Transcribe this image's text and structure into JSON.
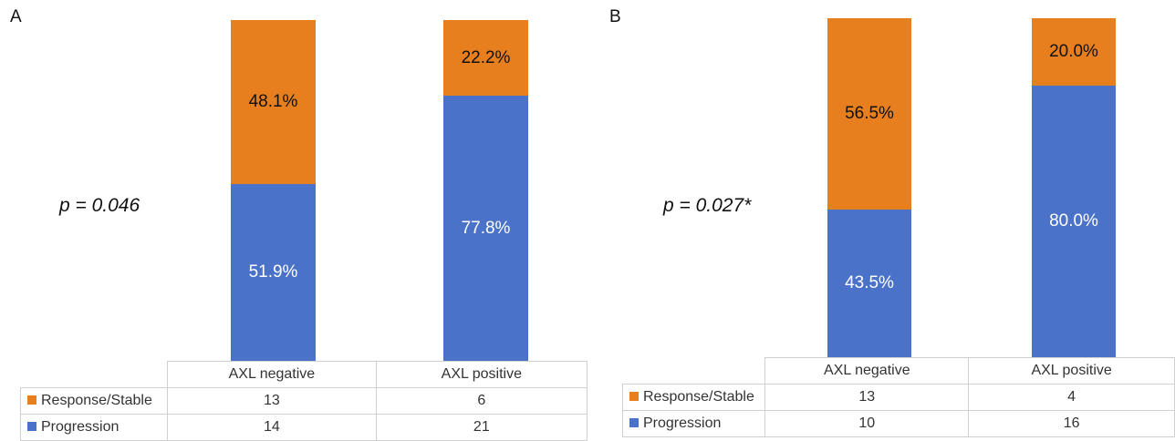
{
  "colors": {
    "response": "#E87F1F",
    "progression": "#4A72C9",
    "orange_label": "#111111",
    "blue_label": "#ffffff"
  },
  "legend": {
    "response": "Response/Stable",
    "progression": "Progression"
  },
  "chart_data": [
    {
      "type": "bar",
      "stacked": "percent",
      "panel": "A",
      "annotation": "p = 0.046",
      "categories": [
        "AXL negative",
        "AXL positive"
      ],
      "series": [
        {
          "name": "Progression",
          "values": [
            51.9,
            77.8
          ],
          "labels": [
            "51.9%",
            "77.8%"
          ],
          "counts": [
            "14",
            "21"
          ]
        },
        {
          "name": "Response/Stable",
          "values": [
            48.1,
            22.2
          ],
          "labels": [
            "48.1%",
            "22.2%"
          ],
          "counts": [
            "13",
            "6"
          ]
        }
      ],
      "ylim": [
        0,
        100
      ]
    },
    {
      "type": "bar",
      "stacked": "percent",
      "panel": "B",
      "annotation": "p = 0.027*",
      "categories": [
        "AXL negative",
        "AXL positive"
      ],
      "series": [
        {
          "name": "Progression",
          "values": [
            43.5,
            80.0
          ],
          "labels": [
            "43.5%",
            "80.0%"
          ],
          "counts": [
            "10",
            "16"
          ]
        },
        {
          "name": "Response/Stable",
          "values": [
            56.5,
            20.0
          ],
          "labels": [
            "56.5%",
            "20.0%"
          ],
          "counts": [
            "13",
            "4"
          ]
        }
      ],
      "ylim": [
        0,
        100
      ]
    }
  ]
}
